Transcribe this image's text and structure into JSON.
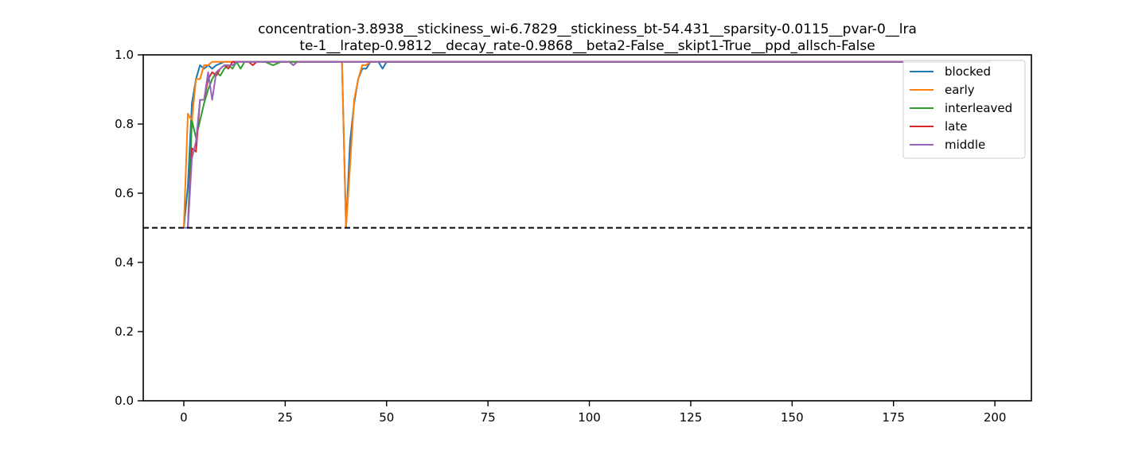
{
  "chart_data": {
    "type": "line",
    "title_lines": [
      "concentration-3.8938__stickiness_wi-6.7829__stickiness_bt-54.431__sparsity-0.0115__pvar-0__lra",
      "te-1__lratep-0.9812__decay_rate-0.9868__beta2-False__skipt1-True__ppd_allsch-False"
    ],
    "xlabel": "",
    "ylabel": "",
    "xlim": [
      -10,
      209
    ],
    "ylim": [
      0,
      1
    ],
    "x_ticks": [
      0,
      25,
      50,
      75,
      100,
      125,
      150,
      175,
      200
    ],
    "y_ticks": [
      0.0,
      0.2,
      0.4,
      0.6,
      0.8,
      1.0
    ],
    "x_tick_labels": [
      "0",
      "25",
      "50",
      "75",
      "100",
      "125",
      "150",
      "175",
      "200"
    ],
    "y_tick_labels": [
      "0.0",
      "0.2",
      "0.4",
      "0.6",
      "0.8",
      "1.0"
    ],
    "grid": false,
    "legend_position": "top-right",
    "reference_line": {
      "y": 0.5,
      "style": "dashed",
      "color": "#000000"
    },
    "series": [
      {
        "name": "blocked",
        "color": "#1f77b4",
        "points": [
          [
            0,
            0.5
          ],
          [
            1,
            0.62
          ],
          [
            2,
            0.86
          ],
          [
            3,
            0.93
          ],
          [
            4,
            0.97
          ],
          [
            5,
            0.96
          ],
          [
            6,
            0.97
          ],
          [
            7,
            0.96
          ],
          [
            8,
            0.97
          ],
          [
            10,
            0.98
          ],
          [
            12,
            0.98
          ],
          [
            14,
            0.98
          ],
          [
            16,
            0.98
          ],
          [
            20,
            0.98
          ],
          [
            30,
            0.98
          ],
          [
            39,
            0.98
          ],
          [
            40,
            0.5
          ],
          [
            41,
            0.75
          ],
          [
            42,
            0.86
          ],
          [
            43,
            0.93
          ],
          [
            44,
            0.96
          ],
          [
            45,
            0.96
          ],
          [
            46,
            0.98
          ],
          [
            47,
            0.98
          ],
          [
            48,
            0.98
          ],
          [
            49,
            0.96
          ],
          [
            50,
            0.98
          ],
          [
            60,
            0.98
          ],
          [
            199,
            0.98
          ]
        ]
      },
      {
        "name": "early",
        "color": "#ff7f0e",
        "points": [
          [
            0,
            0.5
          ],
          [
            1,
            0.83
          ],
          [
            2,
            0.81
          ],
          [
            3,
            0.93
          ],
          [
            4,
            0.93
          ],
          [
            5,
            0.97
          ],
          [
            6,
            0.97
          ],
          [
            7,
            0.98
          ],
          [
            8,
            0.98
          ],
          [
            10,
            0.98
          ],
          [
            20,
            0.98
          ],
          [
            39,
            0.98
          ],
          [
            40,
            0.5
          ],
          [
            41,
            0.68
          ],
          [
            42,
            0.87
          ],
          [
            43,
            0.93
          ],
          [
            44,
            0.97
          ],
          [
            45,
            0.97
          ],
          [
            46,
            0.98
          ],
          [
            50,
            0.98
          ],
          [
            199,
            0.98
          ]
        ]
      },
      {
        "name": "interleaved",
        "color": "#2ca02c",
        "points": [
          [
            0,
            0.5
          ],
          [
            1,
            0.5
          ],
          [
            2,
            0.81
          ],
          [
            3,
            0.76
          ],
          [
            4,
            0.81
          ],
          [
            5,
            0.86
          ],
          [
            6,
            0.9
          ],
          [
            7,
            0.93
          ],
          [
            8,
            0.95
          ],
          [
            9,
            0.94
          ],
          [
            10,
            0.96
          ],
          [
            11,
            0.97
          ],
          [
            12,
            0.96
          ],
          [
            13,
            0.98
          ],
          [
            14,
            0.96
          ],
          [
            15,
            0.98
          ],
          [
            16,
            0.98
          ],
          [
            18,
            0.98
          ],
          [
            20,
            0.98
          ],
          [
            22,
            0.97
          ],
          [
            24,
            0.98
          ],
          [
            26,
            0.98
          ],
          [
            28,
            0.98
          ],
          [
            30,
            0.98
          ],
          [
            199,
            0.98
          ]
        ]
      },
      {
        "name": "late",
        "color": "#d62728",
        "points": [
          [
            0,
            0.5
          ],
          [
            1,
            0.5
          ],
          [
            2,
            0.73
          ],
          [
            3,
            0.72
          ],
          [
            4,
            0.87
          ],
          [
            5,
            0.87
          ],
          [
            6,
            0.93
          ],
          [
            7,
            0.95
          ],
          [
            8,
            0.94
          ],
          [
            9,
            0.96
          ],
          [
            10,
            0.97
          ],
          [
            11,
            0.96
          ],
          [
            12,
            0.98
          ],
          [
            13,
            0.98
          ],
          [
            14,
            0.98
          ],
          [
            16,
            0.98
          ],
          [
            17,
            0.97
          ],
          [
            18,
            0.98
          ],
          [
            20,
            0.98
          ],
          [
            26,
            0.98
          ],
          [
            27,
            0.97
          ],
          [
            28,
            0.98
          ],
          [
            199,
            0.98
          ]
        ]
      },
      {
        "name": "middle",
        "color": "#9467bd",
        "points": [
          [
            0,
            0.5
          ],
          [
            1,
            0.5
          ],
          [
            2,
            0.7
          ],
          [
            3,
            0.75
          ],
          [
            4,
            0.87
          ],
          [
            5,
            0.87
          ],
          [
            6,
            0.95
          ],
          [
            7,
            0.87
          ],
          [
            8,
            0.95
          ],
          [
            9,
            0.96
          ],
          [
            10,
            0.97
          ],
          [
            11,
            0.97
          ],
          [
            12,
            0.97
          ],
          [
            13,
            0.98
          ],
          [
            14,
            0.98
          ],
          [
            16,
            0.98
          ],
          [
            20,
            0.98
          ],
          [
            26,
            0.98
          ],
          [
            27,
            0.97
          ],
          [
            28,
            0.98
          ],
          [
            199,
            0.98
          ]
        ]
      }
    ]
  }
}
